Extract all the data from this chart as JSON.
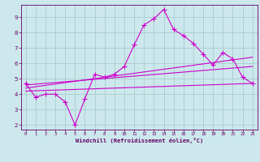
{
  "background_color": "#cce8ec",
  "grid_color": "#aacccc",
  "line_color": "#cc00cc",
  "marker": "+",
  "xlabel": "Windchill (Refroidissement éolien,°C)",
  "xlabel_color": "#660066",
  "tick_color": "#660066",
  "spine_color": "#660066",
  "xlim": [
    -0.5,
    23.5
  ],
  "ylim": [
    1.7,
    9.8
  ],
  "yticks": [
    2,
    3,
    4,
    5,
    6,
    7,
    8,
    9
  ],
  "xticks": [
    0,
    1,
    2,
    3,
    4,
    5,
    6,
    7,
    8,
    9,
    10,
    11,
    12,
    13,
    14,
    15,
    16,
    17,
    18,
    19,
    20,
    21,
    22,
    23
  ],
  "series_main": {
    "x": [
      0,
      1,
      2,
      3,
      4,
      5,
      6,
      7,
      8,
      9,
      10,
      11,
      12,
      13,
      14,
      15,
      16,
      17,
      18,
      19,
      20,
      21,
      22,
      23
    ],
    "y": [
      4.7,
      3.8,
      4.0,
      4.0,
      3.5,
      2.0,
      3.7,
      5.3,
      5.1,
      5.3,
      5.8,
      7.2,
      8.5,
      8.9,
      9.5,
      8.2,
      7.8,
      7.3,
      6.6,
      5.9,
      6.7,
      6.3,
      5.1,
      4.7
    ]
  },
  "series_lines": [
    {
      "x": [
        0,
        23
      ],
      "y": [
        4.2,
        4.7
      ]
    },
    {
      "x": [
        0,
        23
      ],
      "y": [
        4.4,
        6.4
      ]
    },
    {
      "x": [
        0,
        23
      ],
      "y": [
        4.6,
        5.8
      ]
    }
  ]
}
